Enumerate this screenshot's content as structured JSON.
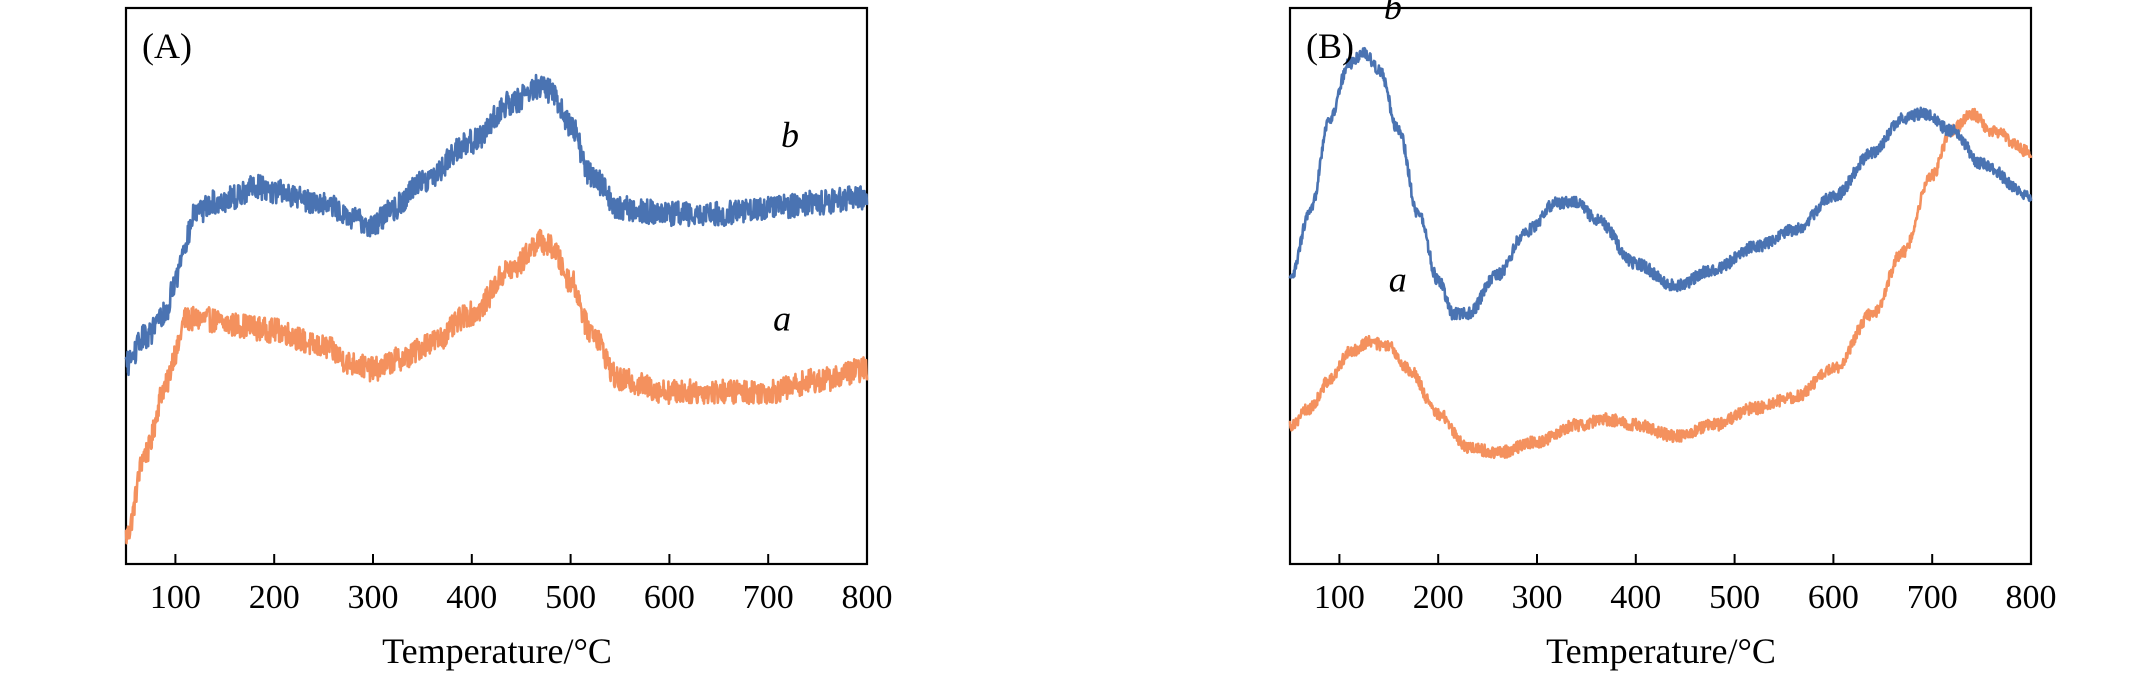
{
  "chart_data": [
    {
      "type": "line",
      "panel_label": "(A)",
      "xlabel": "Temperature/°C",
      "ylabel": "",
      "xlim": [
        50,
        800
      ],
      "ylim": [
        0,
        100
      ],
      "x_ticks": [
        100,
        200,
        300,
        400,
        500,
        600,
        700,
        800
      ],
      "tick_labels": [
        "100",
        "200",
        "300",
        "400",
        "500",
        "600",
        "700",
        "800"
      ],
      "y_ticks_shown": false,
      "noise": 2.2,
      "series": [
        {
          "name": "a",
          "label": "a",
          "color": "#F4915E",
          "x": [
            50,
            70,
            90,
            100,
            110,
            130,
            160,
            200,
            250,
            280,
            300,
            330,
            360,
            400,
            440,
            470,
            480,
            500,
            520,
            550,
            600,
            650,
            700,
            750,
            800
          ],
          "values": [
            5,
            20,
            32,
            38,
            44,
            44,
            43,
            42,
            39,
            36,
            35,
            37,
            40,
            45,
            53,
            58,
            57,
            51,
            42,
            33,
            31,
            31,
            31,
            33,
            35
          ],
          "label_at": {
            "x": 705,
            "y": 42
          }
        },
        {
          "name": "b",
          "label": "b",
          "color": "#4A73B2",
          "x": [
            50,
            70,
            90,
            100,
            110,
            120,
            140,
            160,
            180,
            200,
            250,
            280,
            300,
            320,
            350,
            400,
            440,
            470,
            480,
            500,
            520,
            550,
            600,
            650,
            700,
            750,
            800
          ],
          "values": [
            36,
            41,
            45,
            51,
            58,
            63,
            65,
            66,
            68,
            67,
            65,
            62,
            61,
            64,
            69,
            76,
            83,
            86,
            85,
            79,
            70,
            64,
            63,
            63,
            64,
            65,
            66
          ],
          "label_at": {
            "x": 713,
            "y": 75
          }
        }
      ]
    },
    {
      "type": "line",
      "panel_label": "(B)",
      "xlabel": "Temperature/°C",
      "ylabel": "",
      "xlim": [
        50,
        800
      ],
      "ylim": [
        0,
        100
      ],
      "x_ticks": [
        100,
        200,
        300,
        400,
        500,
        600,
        700,
        800
      ],
      "tick_labels": [
        "100",
        "200",
        "300",
        "400",
        "500",
        "600",
        "700",
        "800"
      ],
      "y_ticks_shown": false,
      "noise": 1.1,
      "series": [
        {
          "name": "a",
          "label": "a",
          "color": "#F4915E",
          "x": [
            50,
            70,
            90,
            110,
            130,
            150,
            170,
            200,
            230,
            260,
            300,
            340,
            370,
            400,
            440,
            480,
            520,
            560,
            600,
            640,
            670,
            700,
            720,
            740,
            760,
            800
          ],
          "values": [
            25,
            28,
            33,
            38,
            40,
            39,
            35,
            27,
            21,
            20,
            22,
            25,
            26,
            25,
            23,
            25,
            28,
            30,
            35,
            45,
            56,
            70,
            78,
            81,
            78,
            74
          ],
          "label_at": {
            "x": 150,
            "y": 49
          }
        },
        {
          "name": "b",
          "label": "b",
          "color": "#4A73B2",
          "x": [
            50,
            70,
            90,
            110,
            125,
            140,
            160,
            180,
            200,
            215,
            230,
            260,
            290,
            320,
            340,
            360,
            400,
            440,
            480,
            520,
            560,
            600,
            640,
            670,
            690,
            720,
            750,
            800
          ],
          "values": [
            51,
            63,
            80,
            90,
            92,
            89,
            78,
            63,
            51,
            45,
            45,
            52,
            60,
            65,
            65,
            62,
            54,
            50,
            53,
            57,
            60,
            66,
            74,
            80,
            81,
            78,
            72,
            66
          ],
          "label_at": {
            "x": 145,
            "y": 98
          }
        }
      ]
    }
  ]
}
